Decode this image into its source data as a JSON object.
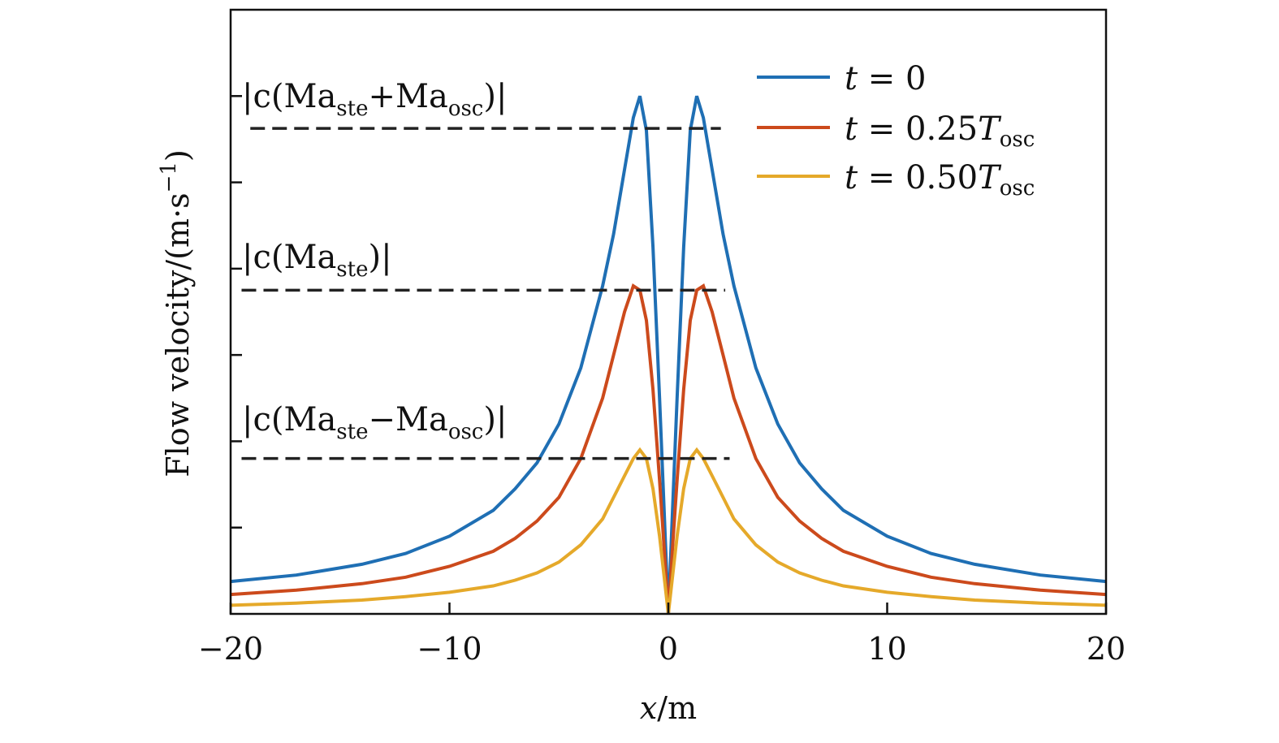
{
  "chart_data": {
    "type": "line",
    "title": "",
    "xlabel": {
      "var": "x",
      "unit": "m"
    },
    "ylabel": {
      "text": "Flow velocity",
      "unit_base": "m·s",
      "unit_exp": "−1"
    },
    "xlim": [
      -20,
      20
    ],
    "ylim": [
      0,
      1.4
    ],
    "xticks": [
      -20,
      -10,
      0,
      10,
      20
    ],
    "xtick_labels": [
      "−20",
      "−10",
      "0",
      "10",
      "20"
    ],
    "yticks": [
      0.2,
      0.4,
      0.6,
      0.8,
      1.0,
      1.2
    ],
    "grid": false,
    "legend_position": "top-right",
    "series": [
      {
        "name": {
          "var": "t",
          "eq": " = 0",
          "sub": ""
        },
        "color": "#1f6fb4",
        "points": [
          [
            -20,
            0.075
          ],
          [
            -17,
            0.09
          ],
          [
            -14,
            0.115
          ],
          [
            -12,
            0.14
          ],
          [
            -10,
            0.18
          ],
          [
            -8,
            0.24
          ],
          [
            -7,
            0.29
          ],
          [
            -6,
            0.35
          ],
          [
            -5,
            0.44
          ],
          [
            -4,
            0.57
          ],
          [
            -3,
            0.76
          ],
          [
            -2.5,
            0.88
          ],
          [
            -2,
            1.03
          ],
          [
            -1.6,
            1.15
          ],
          [
            -1.3,
            1.2
          ],
          [
            -1,
            1.12
          ],
          [
            -0.7,
            0.85
          ],
          [
            -0.4,
            0.5
          ],
          [
            -0.2,
            0.25
          ],
          [
            0,
            0
          ],
          [
            0.2,
            0.25
          ],
          [
            0.4,
            0.5
          ],
          [
            0.7,
            0.85
          ],
          [
            1,
            1.12
          ],
          [
            1.3,
            1.2
          ],
          [
            1.6,
            1.15
          ],
          [
            2,
            1.03
          ],
          [
            2.5,
            0.88
          ],
          [
            3,
            0.76
          ],
          [
            4,
            0.57
          ],
          [
            5,
            0.44
          ],
          [
            6,
            0.35
          ],
          [
            7,
            0.29
          ],
          [
            8,
            0.24
          ],
          [
            10,
            0.18
          ],
          [
            12,
            0.14
          ],
          [
            14,
            0.115
          ],
          [
            17,
            0.09
          ],
          [
            20,
            0.075
          ]
        ]
      },
      {
        "name": {
          "var": "t",
          "eq": " = 0.25",
          "sub": "osc"
        },
        "color": "#cc4a1c",
        "points": [
          [
            -20,
            0.045
          ],
          [
            -17,
            0.055
          ],
          [
            -14,
            0.07
          ],
          [
            -12,
            0.085
          ],
          [
            -10,
            0.11
          ],
          [
            -8,
            0.145
          ],
          [
            -7,
            0.175
          ],
          [
            -6,
            0.215
          ],
          [
            -5,
            0.27
          ],
          [
            -4,
            0.36
          ],
          [
            -3,
            0.5
          ],
          [
            -2.5,
            0.6
          ],
          [
            -2,
            0.7
          ],
          [
            -1.6,
            0.76
          ],
          [
            -1.3,
            0.75
          ],
          [
            -1,
            0.68
          ],
          [
            -0.7,
            0.52
          ],
          [
            -0.4,
            0.31
          ],
          [
            -0.2,
            0.16
          ],
          [
            0,
            0
          ],
          [
            0.2,
            0.16
          ],
          [
            0.4,
            0.31
          ],
          [
            0.7,
            0.52
          ],
          [
            1,
            0.68
          ],
          [
            1.3,
            0.75
          ],
          [
            1.6,
            0.76
          ],
          [
            2,
            0.7
          ],
          [
            2.5,
            0.6
          ],
          [
            3,
            0.5
          ],
          [
            4,
            0.36
          ],
          [
            5,
            0.27
          ],
          [
            6,
            0.215
          ],
          [
            7,
            0.175
          ],
          [
            8,
            0.145
          ],
          [
            10,
            0.11
          ],
          [
            12,
            0.085
          ],
          [
            14,
            0.07
          ],
          [
            17,
            0.055
          ],
          [
            20,
            0.045
          ]
        ]
      },
      {
        "name": {
          "var": "t",
          "eq": " = 0.50",
          "sub": "osc"
        },
        "color": "#e5a92a",
        "points": [
          [
            -20,
            0.02
          ],
          [
            -17,
            0.025
          ],
          [
            -14,
            0.032
          ],
          [
            -12,
            0.04
          ],
          [
            -10,
            0.05
          ],
          [
            -8,
            0.065
          ],
          [
            -7,
            0.078
          ],
          [
            -6,
            0.095
          ],
          [
            -5,
            0.12
          ],
          [
            -4,
            0.16
          ],
          [
            -3,
            0.22
          ],
          [
            -2.5,
            0.27
          ],
          [
            -2,
            0.32
          ],
          [
            -1.6,
            0.36
          ],
          [
            -1.3,
            0.38
          ],
          [
            -1,
            0.36
          ],
          [
            -0.7,
            0.29
          ],
          [
            -0.4,
            0.18
          ],
          [
            -0.2,
            0.09
          ],
          [
            0,
            0
          ],
          [
            0.2,
            0.09
          ],
          [
            0.4,
            0.18
          ],
          [
            0.7,
            0.29
          ],
          [
            1,
            0.36
          ],
          [
            1.3,
            0.38
          ],
          [
            1.6,
            0.36
          ],
          [
            2,
            0.32
          ],
          [
            2.5,
            0.27
          ],
          [
            3,
            0.22
          ],
          [
            4,
            0.16
          ],
          [
            5,
            0.12
          ],
          [
            6,
            0.095
          ],
          [
            7,
            0.078
          ],
          [
            8,
            0.065
          ],
          [
            10,
            0.05
          ],
          [
            12,
            0.04
          ],
          [
            14,
            0.032
          ],
          [
            17,
            0.025
          ],
          [
            20,
            0.02
          ]
        ]
      }
    ],
    "reference_lines": [
      {
        "y": 1.125,
        "x_range": [
          -19.1,
          2.4
        ],
        "label_parts": [
          "|c(Ma",
          "ste",
          "+Ma",
          "osc",
          ")|"
        ]
      },
      {
        "y": 0.75,
        "x_range": [
          -19.5,
          2.6
        ],
        "label_parts": [
          "|c(Ma",
          "ste",
          ")|"
        ]
      },
      {
        "y": 0.36,
        "x_range": [
          -19.5,
          2.8
        ],
        "label_parts": [
          "|c(Ma",
          "ste",
          "−Ma",
          "osc",
          ")|"
        ]
      }
    ]
  }
}
